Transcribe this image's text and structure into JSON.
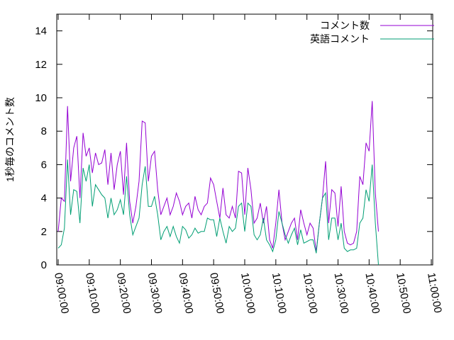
{
  "chart_data": {
    "type": "line",
    "ylabel": "1秒毎のコメント数",
    "xlabel": "",
    "ylim": [
      0,
      15
    ],
    "yticks": [
      0,
      2,
      4,
      6,
      8,
      10,
      12,
      14
    ],
    "x_tick_labels": [
      "09:00:00",
      "09:10:00",
      "09:20:00",
      "09:30:00",
      "09:40:00",
      "09:50:00",
      "10:00:00",
      "10:10:00",
      "10:20:00",
      "10:30:00",
      "10:40:00",
      "10:50:00",
      "11:00:00"
    ],
    "x_interval": "1 minute",
    "legend_position": "top-right",
    "grid": false,
    "series": [
      {
        "name": "コメント数",
        "color": "#9400d3",
        "values": [
          2.0,
          4.0,
          3.8,
          9.5,
          5.0,
          7.0,
          7.7,
          4.0,
          7.9,
          6.5,
          7.0,
          5.5,
          6.7,
          6.0,
          6.1,
          6.9,
          4.8,
          6.7,
          4.5,
          6.0,
          6.8,
          4.2,
          7.3,
          3.8,
          2.5,
          3.5,
          5.0,
          8.6,
          8.5,
          5.0,
          6.5,
          6.8,
          4.5,
          3.0,
          3.5,
          4.0,
          3.0,
          3.5,
          4.3,
          3.8,
          3.0,
          3.5,
          3.7,
          2.8,
          4.1,
          3.3,
          3.0,
          3.5,
          3.7,
          5.2,
          4.8,
          3.8,
          2.8,
          4.6,
          3.0,
          2.8,
          3.5,
          2.8,
          5.6,
          5.5,
          3.0,
          5.8,
          4.5,
          2.5,
          2.8,
          3.7,
          2.5,
          3.5,
          1.5,
          1.0,
          2.5,
          4.5,
          2.5,
          1.5,
          2.0,
          2.5,
          2.8,
          1.5,
          3.3,
          2.5,
          1.8,
          2.5,
          2.2,
          0.8,
          2.5,
          4.0,
          6.2,
          2.5,
          4.5,
          4.3,
          2.3,
          4.7,
          2.0,
          1.3,
          1.2,
          1.3,
          2.0,
          5.3,
          4.8,
          7.3,
          6.8,
          9.8,
          4.3,
          2.0
        ]
      },
      {
        "name": "英語コメント",
        "color": "#009e73",
        "values": [
          1.0,
          1.2,
          2.2,
          6.3,
          3.0,
          4.5,
          4.4,
          2.5,
          5.8,
          5.0,
          6.0,
          3.5,
          4.8,
          4.5,
          4.2,
          4.0,
          2.8,
          4.0,
          3.0,
          3.3,
          3.9,
          3.0,
          5.3,
          3.0,
          1.8,
          2.3,
          2.8,
          4.8,
          5.9,
          3.5,
          3.5,
          4.1,
          3.0,
          1.5,
          2.0,
          2.3,
          1.7,
          2.3,
          1.7,
          1.3,
          2.3,
          2.1,
          1.6,
          1.8,
          2.2,
          1.9,
          2.0,
          2.0,
          2.8,
          2.7,
          2.7,
          1.7,
          2.8,
          2.0,
          1.3,
          2.3,
          2.0,
          2.2,
          3.5,
          3.7,
          2.0,
          3.7,
          3.5,
          1.8,
          1.5,
          1.8,
          2.8,
          1.5,
          1.2,
          0.8,
          1.5,
          3.2,
          2.5,
          1.8,
          1.3,
          1.8,
          2.2,
          1.2,
          2.1,
          1.3,
          1.4,
          1.5,
          1.5,
          0.7,
          2.5,
          4.0,
          4.3,
          1.5,
          2.8,
          2.8,
          1.5,
          2.5,
          1.0,
          0.8,
          0.9,
          0.9,
          1.0,
          2.5,
          2.8,
          4.5,
          3.8,
          6.0,
          2.5,
          0.0
        ]
      }
    ]
  }
}
